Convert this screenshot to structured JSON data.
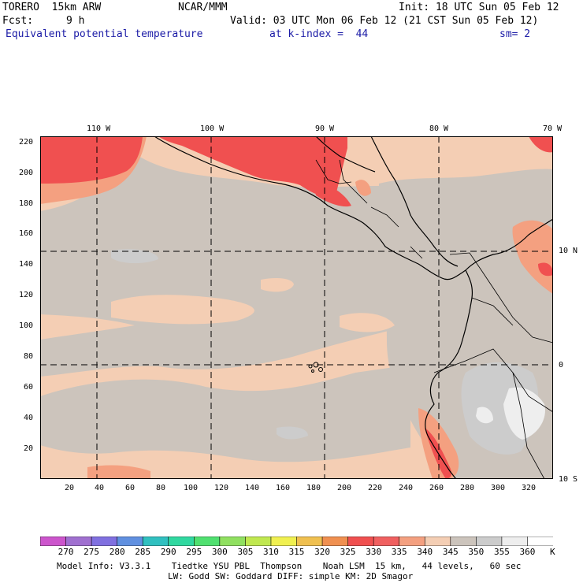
{
  "header": {
    "model": "TORERO  15km ARW",
    "org": "NCAR/MMM",
    "init": "Init: 18 UTC Sun 05 Feb 12",
    "fcst_label": "Fcst:",
    "fcst_value": "9 h",
    "valid": "Valid: 03 UTC Mon 06 Feb 12 (21 CST Sun 05 Feb 12)",
    "field": "Equivalent potential temperature",
    "level": "at k-index =  44",
    "smooth": "sm= 2"
  },
  "map": {
    "lon_labels": [
      "110 W",
      "100 W",
      "90 W",
      "80 W",
      "70 W"
    ],
    "lat_labels": [
      "10 N",
      "0",
      "10 S"
    ],
    "y_ticks": [
      "220",
      "200",
      "180",
      "160",
      "140",
      "120",
      "100",
      "80",
      "60",
      "40",
      "20"
    ],
    "x_ticks": [
      "20",
      "40",
      "60",
      "80",
      "100",
      "120",
      "140",
      "160",
      "180",
      "200",
      "220",
      "240",
      "260",
      "280",
      "300",
      "320"
    ]
  },
  "colorbar": {
    "labels": [
      "270",
      "275",
      "280",
      "285",
      "290",
      "295",
      "300",
      "305",
      "310",
      "315",
      "320",
      "325",
      "330",
      "335",
      "340",
      "345",
      "350",
      "355",
      "360"
    ],
    "unit": "K",
    "colors": [
      "#cc55cc",
      "#a070d0",
      "#8070e0",
      "#6090e0",
      "#30c0c0",
      "#30d8a0",
      "#50e070",
      "#90e060",
      "#c0e850",
      "#f0f050",
      "#f0c050",
      "#f09050",
      "#f05050",
      "#f06060",
      "#f4a080",
      "#f4ceb4",
      "#ccc4bc",
      "#cccccc",
      "#eeeeee",
      "#ffffff"
    ]
  },
  "footer": {
    "line1": "Model Info: V3.3.1    Tiedtke YSU PBL  Thompson    Noah LSM  15 km,   44 levels,   60 sec",
    "line2": "LW: Godd SW: Goddard DIFF: simple KM: 2D Smagor"
  }
}
